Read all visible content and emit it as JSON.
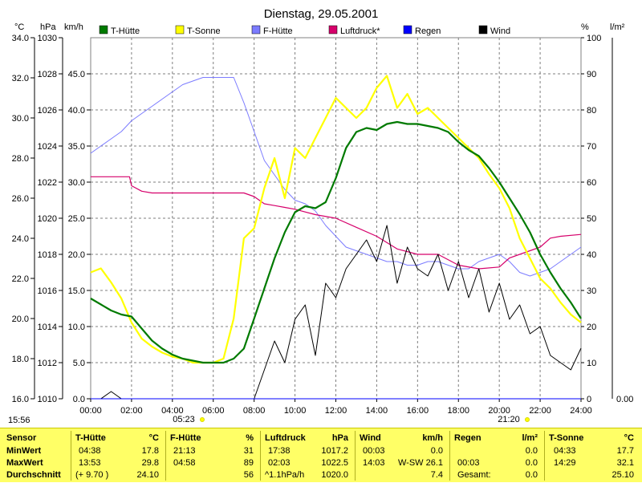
{
  "title": "Dienstag, 29.05.2001",
  "axis_units": {
    "temp": "°C",
    "pressure": "hPa",
    "speed": "km/h",
    "percent": "%",
    "rain": "l/m²"
  },
  "timestamp": "15:56",
  "sunrise": "05:23",
  "sunset": "21:20",
  "colors": {
    "t_huette": "#007a00",
    "t_sonne": "#ffff00",
    "f_huette": "#7b7bff",
    "luftdruck": "#d6006b",
    "regen": "#0000ff",
    "wind": "#000000",
    "panel": "#ffff66"
  },
  "chart_data": {
    "type": "line",
    "title": "Dienstag, 29.05.2001",
    "x_unit": "hours",
    "xlim": [
      0,
      24
    ],
    "x_ticks": [
      "00:00",
      "02:00",
      "04:00",
      "06:00",
      "08:00",
      "10:00",
      "12:00",
      "14:00",
      "16:00",
      "18:00",
      "20:00",
      "22:00",
      "24:00"
    ],
    "axes": {
      "temp_c": {
        "ylim": [
          16,
          34
        ],
        "ticks": [
          "16.0",
          "18.0",
          "20.0",
          "22.0",
          "24.0",
          "26.0",
          "28.0",
          "30.0",
          "32.0",
          "34.0"
        ]
      },
      "pressure_hpa": {
        "ylim": [
          1010,
          1030
        ],
        "ticks": [
          "1010",
          "1012",
          "1014",
          "1016",
          "1018",
          "1020",
          "1022",
          "1024",
          "1026",
          "1028",
          "1030"
        ]
      },
      "wind_kmh": {
        "ylim": [
          0,
          50
        ],
        "ticks": [
          "0.0",
          "5.0",
          "10.0",
          "15.0",
          "20.0",
          "25.0",
          "30.0",
          "35.0",
          "40.0",
          "45.0"
        ]
      },
      "humidity_pct": {
        "ylim": [
          0,
          100
        ],
        "ticks": [
          "0",
          "10",
          "20",
          "30",
          "40",
          "50",
          "60",
          "70",
          "80",
          "90",
          "100"
        ]
      },
      "rain_lm2": {
        "ticks": [
          "0.00"
        ]
      }
    },
    "legend": [
      "T-Hütte",
      "T-Sonne",
      "F-Hütte",
      "Luftdruck*",
      "Regen",
      "Wind"
    ],
    "series": [
      {
        "name": "T-Hütte",
        "axis": "temp_c",
        "x": [
          0,
          1,
          1.5,
          2,
          2.5,
          3,
          3.5,
          4,
          4.5,
          5,
          5.5,
          6,
          6.5,
          7,
          7.5,
          8,
          8.5,
          9,
          9.5,
          10,
          10.5,
          11,
          11.5,
          12,
          12.5,
          13,
          13.5,
          14,
          14.5,
          15,
          15.5,
          16,
          16.5,
          17,
          17.5,
          18,
          18.5,
          19,
          19.5,
          20,
          20.5,
          21,
          21.5,
          22,
          22.5,
          23,
          23.5,
          24
        ],
        "y": [
          21.0,
          20.4,
          20.2,
          20.1,
          19.5,
          18.9,
          18.5,
          18.2,
          18.0,
          17.9,
          17.8,
          17.8,
          17.8,
          18.0,
          18.5,
          20.0,
          21.5,
          23.0,
          24.3,
          25.3,
          25.6,
          25.5,
          25.8,
          27.0,
          28.5,
          29.3,
          29.5,
          29.4,
          29.7,
          29.8,
          29.7,
          29.7,
          29.6,
          29.5,
          29.3,
          28.8,
          28.4,
          28.1,
          27.5,
          26.8,
          26.0,
          25.2,
          24.3,
          23.2,
          22.3,
          21.5,
          20.8,
          20.0
        ]
      },
      {
        "name": "T-Sonne",
        "axis": "temp_c",
        "x": [
          0,
          0.5,
          1,
          1.5,
          2,
          2.5,
          3,
          3.5,
          4,
          4.5,
          5,
          5.5,
          6,
          6.5,
          7,
          7.5,
          8,
          8.5,
          9,
          9.5,
          10,
          10.5,
          11,
          11.5,
          12,
          12.5,
          13,
          13.5,
          14,
          14.5,
          15,
          15.5,
          16,
          16.5,
          17,
          17.5,
          18,
          18.5,
          19,
          19.5,
          20,
          20.5,
          21,
          21.5,
          22,
          22.5,
          23,
          23.5,
          24
        ],
        "y": [
          22.3,
          22.5,
          21.8,
          21.0,
          19.8,
          19.0,
          18.6,
          18.3,
          18.1,
          18.0,
          17.8,
          17.8,
          17.8,
          18.0,
          20.0,
          24.0,
          24.5,
          26.5,
          28.0,
          26.0,
          28.5,
          28.0,
          29.0,
          30.0,
          31.0,
          30.5,
          30.0,
          30.5,
          31.5,
          32.1,
          30.5,
          31.2,
          30.2,
          30.5,
          30.0,
          29.5,
          29.0,
          28.5,
          28.0,
          27.2,
          26.5,
          25.5,
          24.0,
          23.0,
          22.0,
          21.5,
          20.8,
          20.2,
          19.8
        ]
      },
      {
        "name": "F-Hütte",
        "axis": "humidity_pct",
        "x": [
          0,
          0.5,
          1,
          1.5,
          2,
          2.5,
          3,
          3.5,
          4,
          4.5,
          5,
          5.5,
          6,
          6.5,
          7,
          7.5,
          8,
          8.5,
          9,
          9.5,
          10,
          10.5,
          11,
          11.5,
          12,
          12.5,
          13,
          13.5,
          14,
          14.5,
          15,
          15.5,
          16,
          16.5,
          17,
          17.5,
          18,
          18.5,
          19,
          19.5,
          20,
          20.5,
          21,
          21.5,
          22,
          22.5,
          23,
          23.5,
          24
        ],
        "y": [
          68,
          70,
          72,
          74,
          77,
          79,
          81,
          83,
          85,
          87,
          88,
          89,
          89,
          89,
          89,
          82,
          74,
          66,
          62,
          58,
          55,
          54,
          52,
          48,
          45,
          42,
          41,
          40,
          39,
          38,
          38,
          37,
          37,
          38,
          38,
          37,
          36,
          36,
          38,
          39,
          40,
          38,
          35,
          34,
          35,
          36,
          38,
          40,
          42
        ]
      },
      {
        "name": "Luftdruck*",
        "axis": "pressure_hpa",
        "x": [
          0,
          1,
          1.9,
          2,
          2.5,
          3,
          4,
          5,
          6,
          7,
          7.5,
          8,
          8.5,
          9,
          9.5,
          10,
          11,
          12,
          13,
          14,
          15,
          16,
          17,
          18,
          19,
          20,
          20.5,
          21,
          21.5,
          22,
          22.5,
          23,
          24
        ],
        "y": [
          1022.3,
          1022.3,
          1022.3,
          1021.8,
          1021.5,
          1021.4,
          1021.4,
          1021.4,
          1021.4,
          1021.4,
          1021.4,
          1021.2,
          1020.8,
          1020.7,
          1020.6,
          1020.5,
          1020.2,
          1020.0,
          1019.5,
          1019.0,
          1018.3,
          1018.0,
          1018.0,
          1017.4,
          1017.2,
          1017.3,
          1017.8,
          1018.0,
          1018.2,
          1018.4,
          1018.9,
          1019.0,
          1019.1
        ]
      },
      {
        "name": "Regen",
        "axis": "rain_lm2",
        "x": [
          0,
          24
        ],
        "y": [
          0,
          0
        ]
      },
      {
        "name": "Wind",
        "axis": "wind_kmh",
        "x": [
          0,
          0.5,
          1,
          1.5,
          2,
          2.5,
          3,
          3.5,
          4,
          4.5,
          5,
          5.5,
          6,
          6.5,
          7,
          7.5,
          8,
          8.5,
          9,
          9.5,
          10,
          10.5,
          11,
          11.5,
          12,
          12.5,
          13,
          13.5,
          14,
          14.5,
          15,
          15.5,
          16,
          16.5,
          17,
          17.5,
          18,
          18.5,
          19,
          19.5,
          20,
          20.5,
          21,
          21.5,
          22,
          22.5,
          23,
          23.5,
          24
        ],
        "y": [
          0,
          0,
          1,
          0,
          0,
          0,
          0,
          0,
          0,
          0,
          0,
          0,
          0,
          0,
          0,
          0,
          0,
          4,
          8,
          5,
          11,
          13,
          6,
          16,
          14,
          18,
          20,
          22,
          19,
          24,
          16,
          21,
          18,
          17,
          20,
          15,
          19,
          14,
          18,
          12,
          16,
          11,
          13,
          9,
          10,
          6,
          5,
          4,
          7
        ]
      }
    ]
  },
  "stats": {
    "sensor_label": "Sensor",
    "min_label": "MinWert",
    "max_label": "MaxWert",
    "avg_label": "Durchschnitt",
    "t_huette": {
      "title": "T-Hütte",
      "unit": "°C",
      "min_time": "04:38",
      "min_val": "17.8",
      "max_time": "13:53",
      "max_val": "29.8",
      "avg_note": "(+ 9.70 )",
      "avg_val": "24.10"
    },
    "f_huette": {
      "title": "F-Hütte",
      "unit": "%",
      "min_time": "21:13",
      "min_val": "31",
      "max_time": "04:58",
      "max_val": "89",
      "avg_val": "56"
    },
    "luftdruck": {
      "title": "Luftdruck",
      "unit": "hPa",
      "min_time": "17:38",
      "min_val": "1017.2",
      "max_time": "02:03",
      "max_val": "1022.5",
      "avg_note": "^1.1hPa/h",
      "avg_val": "1020.0"
    },
    "wind": {
      "title": "Wind",
      "unit": "km/h",
      "min_time": "00:03",
      "min_val": "0.0",
      "max_time": "14:03",
      "max_val": "W-SW 26.1",
      "avg_val": "7.4"
    },
    "regen": {
      "title": "Regen",
      "unit": "l/m²",
      "min_val": "0.0",
      "max_time": "00:03",
      "max_val": "0.0",
      "avg_label": "Gesamt:",
      "avg_val": "0.0"
    },
    "t_sonne": {
      "title": "T-Sonne",
      "unit": "°C",
      "min_time": "04:33",
      "min_val": "17.7",
      "max_time": "14:29",
      "max_val": "32.1",
      "avg_val": "25.10"
    }
  }
}
